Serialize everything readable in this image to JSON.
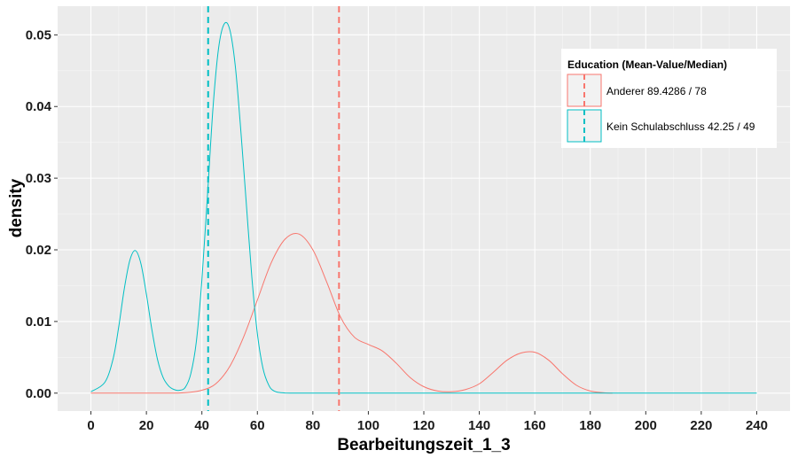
{
  "chart_data": {
    "type": "line",
    "xlabel": "Bearbeitungszeit_1_3",
    "ylabel": "density",
    "xlim": [
      -12,
      252
    ],
    "ylim": [
      -0.0025,
      0.054
    ],
    "x_ticks": [
      0,
      20,
      40,
      60,
      80,
      100,
      120,
      140,
      160,
      180,
      200,
      220,
      240
    ],
    "x_tick_labels": [
      "0",
      "20",
      "40",
      "60",
      "80",
      "100",
      "120",
      "140",
      "160",
      "180",
      "200",
      "220",
      "240"
    ],
    "y_ticks": [
      0.0,
      0.01,
      0.02,
      0.03,
      0.04,
      0.05
    ],
    "y_tick_labels": [
      "0.00",
      "0.01",
      "0.02",
      "0.03",
      "0.04",
      "0.05"
    ],
    "grid": true,
    "legend": {
      "title": "Education (Mean-Value/Median)",
      "position": "top-right",
      "entries": [
        "Anderer 89.4286 / 78",
        "Kein Schulabschluss 42.25 / 49"
      ]
    },
    "series": [
      {
        "name": "Anderer 89.4286 / 78",
        "color": "#F8766D",
        "mean_line_x": 89.4286,
        "x": [
          0,
          20,
          30,
          35,
          40,
          45,
          50,
          55,
          60,
          65,
          70,
          75,
          80,
          85,
          90,
          95,
          100,
          105,
          110,
          115,
          120,
          125,
          130,
          135,
          140,
          145,
          150,
          155,
          160,
          165,
          170,
          175,
          180,
          185,
          188
        ],
        "y": [
          0.0,
          0.0,
          0.0,
          0.0001,
          0.0004,
          0.0013,
          0.0037,
          0.0078,
          0.013,
          0.0182,
          0.0215,
          0.0222,
          0.02,
          0.0155,
          0.0106,
          0.0078,
          0.0068,
          0.0059,
          0.0042,
          0.0022,
          0.0009,
          0.0003,
          0.0002,
          0.0005,
          0.0013,
          0.0029,
          0.0046,
          0.0056,
          0.0057,
          0.0046,
          0.0027,
          0.0011,
          0.0003,
          5e-05,
          0.0
        ]
      },
      {
        "name": "Kein Schulabschluss 42.25 / 49",
        "color": "#00BFC4",
        "mean_line_x": 42.25,
        "x": [
          0,
          5,
          8,
          10,
          12,
          14,
          16,
          18,
          20,
          22,
          24,
          26,
          28,
          30,
          32,
          34,
          36,
          38,
          40,
          42,
          44,
          46,
          48,
          50,
          52,
          54,
          56,
          58,
          60,
          62,
          64,
          66,
          70,
          80,
          100,
          150,
          200,
          240
        ],
        "y": [
          0.0002,
          0.0015,
          0.0048,
          0.0092,
          0.0145,
          0.0185,
          0.0199,
          0.0181,
          0.0138,
          0.0088,
          0.0047,
          0.0022,
          0.001,
          0.0005,
          0.0004,
          0.0008,
          0.0027,
          0.0072,
          0.0158,
          0.0275,
          0.0398,
          0.0481,
          0.0515,
          0.0508,
          0.0458,
          0.0368,
          0.0265,
          0.0162,
          0.0083,
          0.0035,
          0.0012,
          0.0003,
          2e-05,
          0.0,
          0.0,
          0.0,
          0.0,
          0.0
        ]
      }
    ]
  }
}
